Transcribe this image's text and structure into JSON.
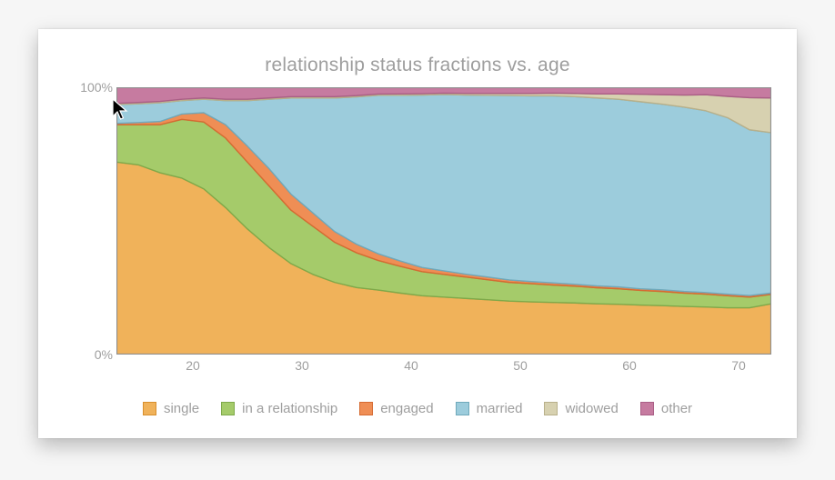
{
  "chart": {
    "type": "stacked-area",
    "title": "relationship status fractions vs. age",
    "title_fontsize": 21,
    "title_color": "#9e9e9e",
    "label_fontsize": 14,
    "label_color": "#9e9e9e",
    "background_color": "#ffffff",
    "page_background": "#f6f6f6",
    "grid_color": "#b5b5b5",
    "axis_color": "#8f8f8f",
    "tick_color": "#8f8f8f",
    "xlim": [
      13,
      73
    ],
    "ylim": [
      0,
      100
    ],
    "xtick_positions": [
      20,
      30,
      40,
      50,
      60,
      70
    ],
    "ytick_positions": [
      0,
      100
    ],
    "ytick_labels": [
      "0%",
      "100%"
    ],
    "x_values": [
      13,
      15,
      17,
      19,
      21,
      23,
      25,
      27,
      29,
      31,
      33,
      35,
      37,
      39,
      41,
      43,
      45,
      47,
      49,
      51,
      53,
      55,
      57,
      59,
      61,
      63,
      65,
      67,
      69,
      71,
      73
    ],
    "series": [
      {
        "name": "single",
        "color_fill": "#f0b25a",
        "color_stroke": "#d88f2d",
        "values": [
          72,
          71,
          68,
          66,
          62,
          55,
          47,
          40,
          34,
          30,
          27,
          25,
          24,
          23,
          22,
          21.5,
          21,
          20.5,
          20,
          19.7,
          19.5,
          19.3,
          19,
          18.8,
          18.5,
          18.3,
          18,
          17.8,
          17.5,
          17.5,
          19
        ]
      },
      {
        "name": "in a relationship",
        "color_fill": "#a5cb6a",
        "color_stroke": "#7ea94a",
        "values": [
          14,
          15,
          18,
          22,
          25,
          26,
          25,
          23,
          20,
          18,
          15,
          13,
          11,
          10,
          9,
          8.5,
          8,
          7.5,
          7,
          6.8,
          6.5,
          6.3,
          6,
          5.8,
          5.5,
          5.3,
          5,
          4.8,
          4.5,
          4,
          3.5
        ]
      },
      {
        "name": "engaged",
        "color_fill": "#ef8e55",
        "color_stroke": "#d56a32",
        "values": [
          0.5,
          0.8,
          1.2,
          2,
          3.5,
          5,
          6,
          6.5,
          6,
          5,
          4,
          3.2,
          2.5,
          2,
          1.6,
          1.3,
          1.1,
          1,
          0.9,
          0.8,
          0.8,
          0.7,
          0.7,
          0.7,
          0.6,
          0.6,
          0.6,
          0.6,
          0.6,
          0.6,
          0.5
        ]
      },
      {
        "name": "married",
        "color_fill": "#9cccdc",
        "color_stroke": "#6fa9bb",
        "values": [
          7,
          7,
          7,
          5,
          5,
          9,
          17,
          26,
          36,
          43,
          50,
          55,
          59,
          62,
          64.5,
          66,
          67,
          68,
          69,
          69.5,
          70,
          70.2,
          70.3,
          70.2,
          70,
          69.5,
          69,
          68,
          66,
          62,
          60
        ]
      },
      {
        "name": "widowed",
        "color_fill": "#d7d1b0",
        "color_stroke": "#b8b08a",
        "values": [
          0.5,
          0.5,
          0.5,
          0.5,
          0.5,
          0.5,
          0.5,
          0.5,
          0.5,
          0.5,
          0.5,
          0.5,
          0.5,
          0.5,
          0.5,
          0.5,
          0.6,
          0.7,
          0.8,
          0.9,
          1,
          1.2,
          1.5,
          2,
          2.8,
          3.5,
          4.5,
          6,
          8,
          12,
          13
        ]
      },
      {
        "name": "other",
        "color_fill": "#c67ba0",
        "color_stroke": "#aa5f86",
        "values": [
          6,
          5.7,
          5.3,
          4.5,
          4,
          4.5,
          4.5,
          4,
          3.5,
          3.5,
          3.5,
          3.1,
          2.5,
          2.5,
          2.4,
          2.2,
          2.3,
          2.3,
          2.3,
          2.3,
          2.2,
          2.3,
          2.5,
          2.5,
          2.6,
          2.8,
          2.9,
          2.8,
          3.4,
          3.9,
          4
        ]
      }
    ],
    "legend_position": "bottom-center",
    "area_stroke_width": 1.4,
    "grid_stroke_width": 0.6,
    "axis_stroke_width": 1.2,
    "tick_length": 5
  },
  "frame": {
    "shadow": "0 8px 20px rgba(0,0,0,0.25)"
  },
  "cursor": {
    "visible": true,
    "x_page": 122,
    "y_page": 108
  }
}
